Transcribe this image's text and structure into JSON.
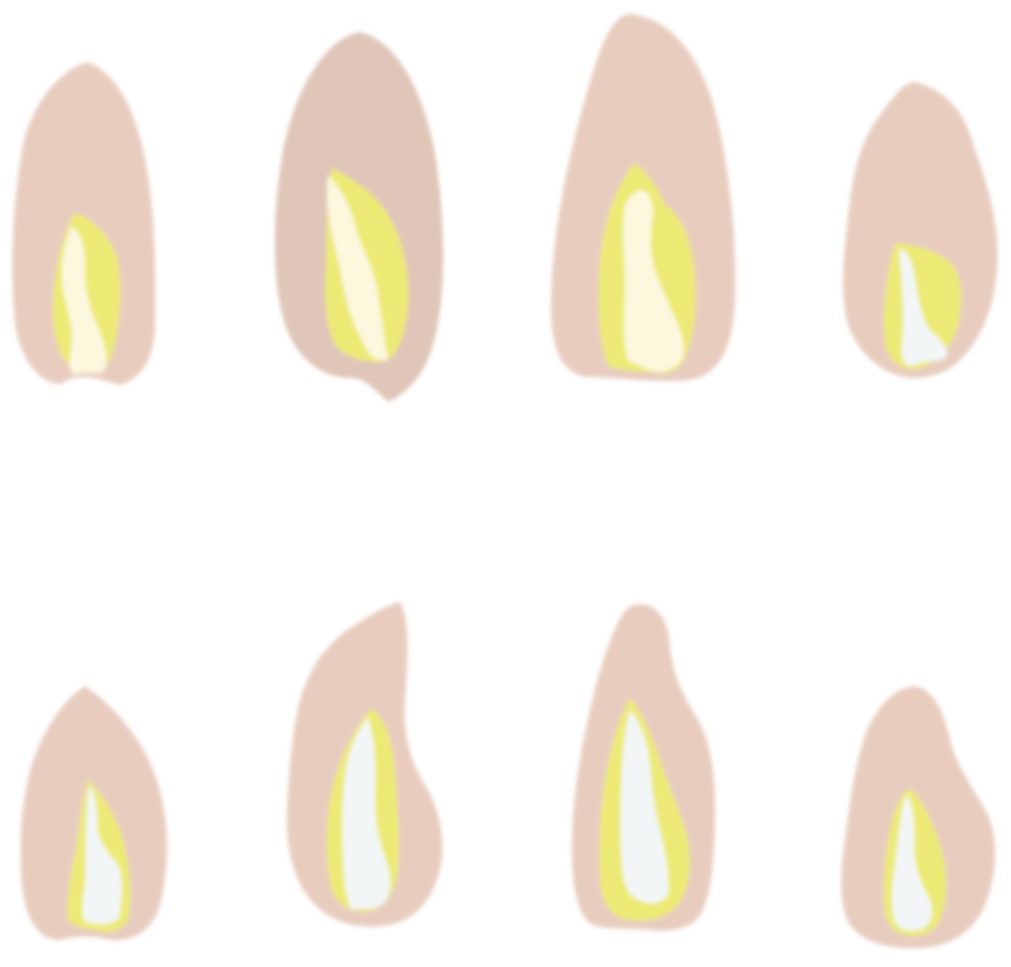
{
  "colors": {
    "background": "#ffffff",
    "outer": "#e8cdbf",
    "outer_dark": "#e0c6b8",
    "middle": "#ecea74",
    "inner_cream": "#fdf7de",
    "inner_white": "#f3f6f6"
  },
  "kernels": [
    {
      "row": 1,
      "col": 1,
      "outer": "outer",
      "inner": "inner_cream"
    },
    {
      "row": 1,
      "col": 2,
      "outer": "outer_dark",
      "inner": "inner_cream"
    },
    {
      "row": 1,
      "col": 3,
      "outer": "outer",
      "inner": "inner_cream"
    },
    {
      "row": 1,
      "col": 4,
      "outer": "outer",
      "inner": "inner_white"
    },
    {
      "row": 2,
      "col": 1,
      "outer": "outer",
      "inner": "inner_white"
    },
    {
      "row": 2,
      "col": 2,
      "outer": "outer",
      "inner": "inner_white"
    },
    {
      "row": 2,
      "col": 3,
      "outer": "outer",
      "inner": "inner_white"
    },
    {
      "row": 2,
      "col": 4,
      "outer": "outer",
      "inner": "inner_white"
    }
  ]
}
